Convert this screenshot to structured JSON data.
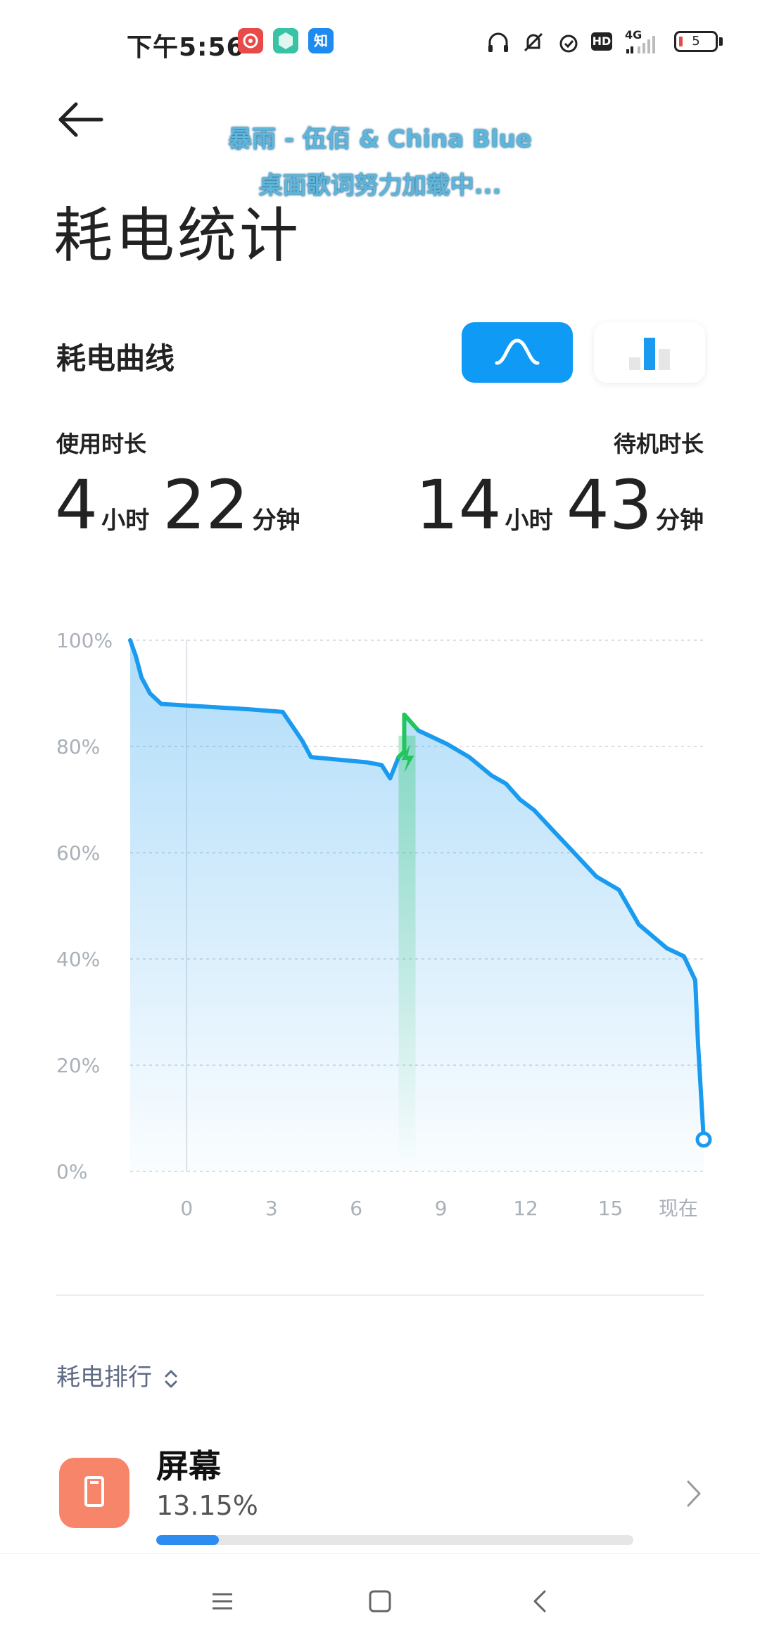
{
  "status_bar": {
    "time": "下午5:56",
    "app_icons": [
      "netease-music-icon",
      "hexagon-app-icon",
      "zhihu-icon"
    ],
    "zhihu_glyph": "知",
    "network": "4G",
    "hd": "HD",
    "battery_level": "5",
    "battery_color": "#e84a4a"
  },
  "lyrics": {
    "line1": "暴雨 - 伍佰 & China Blue",
    "line2": "桌面歌词努力加载中..."
  },
  "page": {
    "title": "耗电统计"
  },
  "section": {
    "title": "耗电曲线",
    "toggle_active": "curve",
    "accent_color": "#0f9af5"
  },
  "usage": {
    "label": "使用时长",
    "hours": "4",
    "hours_unit": "小时",
    "minutes": "22",
    "minutes_unit": "分钟"
  },
  "standby": {
    "label": "待机时长",
    "hours": "14",
    "hours_unit": "小时",
    "minutes": "43",
    "minutes_unit": "分钟"
  },
  "chart_data": {
    "type": "area",
    "y_ticks": [
      "100%",
      "80%",
      "60%",
      "40%",
      "20%",
      "0%"
    ],
    "x_ticks": [
      "0",
      "3",
      "6",
      "9",
      "12",
      "15",
      "现在"
    ],
    "ylim": [
      0,
      100
    ],
    "xlim": [
      -2,
      18.3
    ],
    "series": [
      {
        "color": "#1a9bef",
        "points": [
          [
            -2,
            100
          ],
          [
            -1.8,
            97
          ],
          [
            -1.6,
            93
          ],
          [
            -1.3,
            90
          ],
          [
            -0.9,
            88
          ],
          [
            2.2,
            87
          ],
          [
            3.4,
            86.5
          ],
          [
            4.1,
            81
          ],
          [
            4.4,
            78
          ],
          [
            6.4,
            77
          ],
          [
            6.9,
            76.5
          ],
          [
            7.2,
            74
          ],
          [
            7.5,
            78
          ],
          [
            7.7,
            79
          ],
          [
            7.7,
            86
          ],
          [
            8.2,
            83
          ],
          [
            8.6,
            82
          ],
          [
            9.2,
            80.5
          ],
          [
            10,
            78
          ],
          [
            10.8,
            74.5
          ],
          [
            11.3,
            73
          ],
          [
            11.8,
            70
          ],
          [
            12.3,
            68
          ],
          [
            13,
            64
          ],
          [
            13.8,
            59.5
          ],
          [
            14.5,
            55.5
          ],
          [
            15.3,
            53
          ],
          [
            16,
            46.5
          ],
          [
            17,
            42
          ],
          [
            17.6,
            40.5
          ],
          [
            18,
            36
          ],
          [
            18.1,
            24
          ],
          [
            18.3,
            6
          ]
        ]
      }
    ],
    "charging": {
      "x_start": 7.5,
      "x_end": 8.1,
      "peak": 86,
      "color": "#22c55e"
    },
    "current_point": [
      18.3,
      6
    ]
  },
  "ranking": {
    "title": "耗电排行",
    "items": [
      {
        "name": "屏幕",
        "percent": "13.15%",
        "value": 13.15,
        "icon_color": "#f7856a"
      }
    ]
  }
}
